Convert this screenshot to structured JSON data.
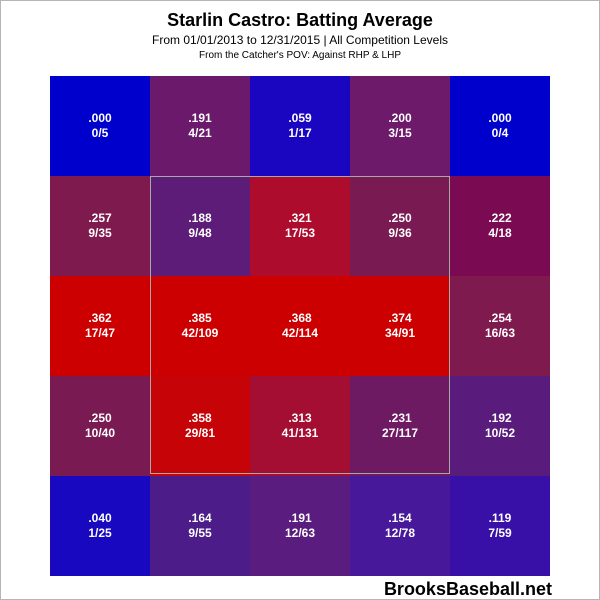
{
  "title": "Starlin Castro: Batting Average",
  "subtitle": "From 01/01/2013 to 12/31/2015 | All Competition Levels",
  "subtitle2": "From the Catcher's POV:  Against RHP & LHP",
  "watermark": "BrooksBaseball.net",
  "chart_data": {
    "type": "heatmap",
    "title": "Starlin Castro: Batting Average",
    "rows": 5,
    "cols": 5,
    "strike_zone": "inner 3x3 cells",
    "cells": [
      [
        {
          "avg": ".000",
          "ratio": "0/5",
          "color": "#0000CC"
        },
        {
          "avg": ".191",
          "ratio": "4/21",
          "color": "#6B1A6B"
        },
        {
          "avg": ".059",
          "ratio": "1/17",
          "color": "#1A06C0"
        },
        {
          "avg": ".200",
          "ratio": "3/15",
          "color": "#6C1A69"
        },
        {
          "avg": ".000",
          "ratio": "0/4",
          "color": "#0000CC"
        }
      ],
      [
        {
          "avg": ".257",
          "ratio": "9/35",
          "color": "#7F1A4E"
        },
        {
          "avg": ".188",
          "ratio": "9/48",
          "color": "#5C1C77"
        },
        {
          "avg": ".321",
          "ratio": "17/53",
          "color": "#AD0C2C"
        },
        {
          "avg": ".250",
          "ratio": "9/36",
          "color": "#7A1A52"
        },
        {
          "avg": ".222",
          "ratio": "4/18",
          "color": "#7A0A52"
        }
      ],
      [
        {
          "avg": ".362",
          "ratio": "17/47",
          "color": "#CC0000"
        },
        {
          "avg": ".385",
          "ratio": "42/109",
          "color": "#CC0000"
        },
        {
          "avg": ".368",
          "ratio": "42/114",
          "color": "#CC0000"
        },
        {
          "avg": ".374",
          "ratio": "34/91",
          "color": "#CC0000"
        },
        {
          "avg": ".254",
          "ratio": "16/63",
          "color": "#7F1A4F"
        }
      ],
      [
        {
          "avg": ".250",
          "ratio": "10/40",
          "color": "#7A1A52"
        },
        {
          "avg": ".358",
          "ratio": "29/81",
          "color": "#C60306"
        },
        {
          "avg": ".313",
          "ratio": "41/131",
          "color": "#A40E32"
        },
        {
          "avg": ".231",
          "ratio": "27/117",
          "color": "#6D1A62"
        },
        {
          "avg": ".192",
          "ratio": "10/52",
          "color": "#5A1C7C"
        }
      ],
      [
        {
          "avg": ".040",
          "ratio": "1/25",
          "color": "#1808C0"
        },
        {
          "avg": ".164",
          "ratio": "9/55",
          "color": "#4C1C88"
        },
        {
          "avg": ".191",
          "ratio": "12/63",
          "color": "#5A1C7E"
        },
        {
          "avg": ".154",
          "ratio": "12/78",
          "color": "#48189A"
        },
        {
          "avg": ".119",
          "ratio": "7/59",
          "color": "#3810A8"
        }
      ]
    ]
  }
}
